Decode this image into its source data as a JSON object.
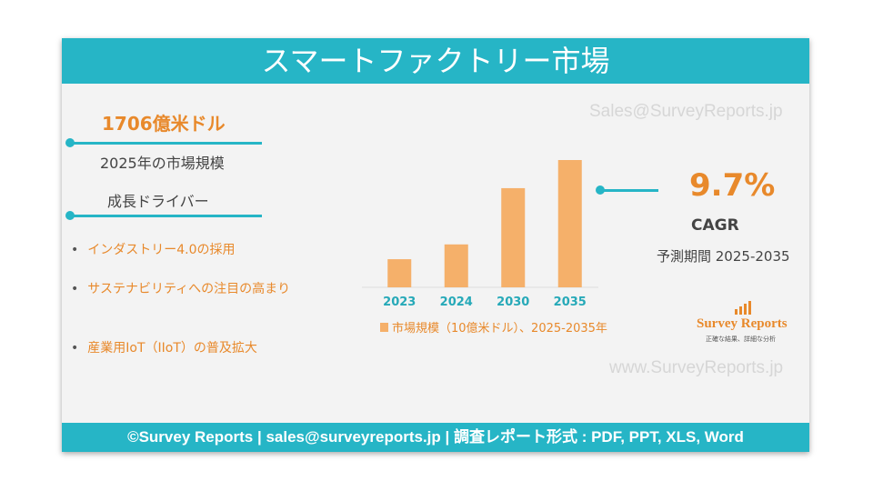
{
  "header": {
    "title": "スマートファクトリー市場"
  },
  "watermarks": [
    "Sales@SurveyReports.jp",
    "www.SurveyReports.jp"
  ],
  "left": {
    "market_size": "1706億米ドル",
    "market_size_label": "2025年の市場規模",
    "drivers_title": "成長ドライバー",
    "drivers": [
      "インダストリー4.0の採用",
      "サステナビリティへの注目の高まり",
      "産業用IoT（IIoT）の普及拡大"
    ]
  },
  "chart_data": {
    "type": "bar",
    "categories": [
      "2023",
      "2024",
      "2030",
      "2035"
    ],
    "series": [
      {
        "name": "市場規模（10億米ドル）、2025-2035年",
        "color": "#f5b06a",
        "values": [
          95,
          145,
          335,
          430
        ]
      }
    ]
  },
  "right": {
    "cagr": "9.7%",
    "cagr_label": "CAGR",
    "period": "予測期間 2025-2035"
  },
  "logo": {
    "name": "Survey Reports",
    "tagline": "正確な結果、詳細な分析"
  },
  "footer": {
    "text": "©Survey Reports | sales@surveyreports.jp | 調査レポート形式 : PDF, PPT, XLS, Word"
  }
}
